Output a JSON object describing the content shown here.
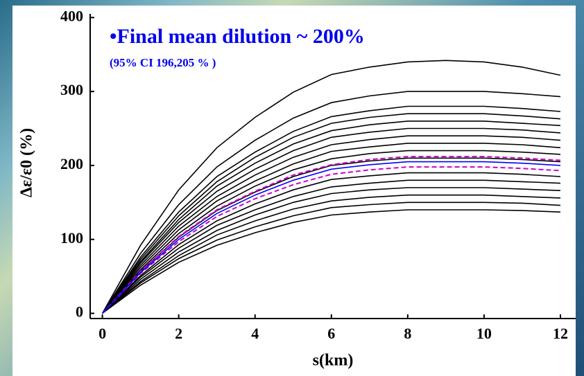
{
  "chart_data": {
    "type": "line",
    "title": "•Final mean dilution ~ 200%",
    "subtitle": "(95% CI 196,205 % )",
    "x_label": "s(km)",
    "y_label": "Δε/ε0 (%)",
    "x": [
      0,
      1,
      2,
      3,
      4,
      5,
      6,
      7,
      8,
      9,
      10,
      11,
      12
    ],
    "xlim": [
      -0.32,
      12.4
    ],
    "ylim": [
      -7,
      405
    ],
    "xticks": [
      0,
      2,
      4,
      6,
      8,
      10,
      12
    ],
    "yticks": [
      0,
      100,
      200,
      300,
      400
    ],
    "series": [
      {
        "color": "#000000",
        "values": [
          0,
          38,
          69,
          92,
          109,
          123,
          133,
          137,
          140,
          140,
          140,
          139,
          137
        ]
      },
      {
        "color": "#000000",
        "values": [
          0,
          41,
          74,
          99,
          117,
          132,
          143,
          147,
          150,
          150,
          150,
          149,
          146
        ]
      },
      {
        "color": "#000000",
        "values": [
          0,
          43,
          78,
          106,
          125,
          141,
          152,
          157,
          160,
          160,
          160,
          158,
          156
        ]
      },
      {
        "color": "#000000",
        "values": [
          0,
          46,
          83,
          112,
          133,
          150,
          162,
          167,
          170,
          170,
          170,
          168,
          166
        ]
      },
      {
        "color": "#000000",
        "values": [
          0,
          49,
          88,
          119,
          140,
          158,
          171,
          176,
          180,
          180,
          180,
          178,
          176
        ]
      },
      {
        "color": "#000000",
        "values": [
          0,
          51,
          93,
          125,
          148,
          167,
          181,
          186,
          190,
          190,
          190,
          188,
          185
        ]
      },
      {
        "color": "#000000",
        "values": [
          0,
          57,
          103,
          139,
          164,
          185,
          200,
          206,
          210,
          210,
          210,
          208,
          205
        ]
      },
      {
        "color": "#000000",
        "values": [
          0,
          59,
          108,
          145,
          172,
          194,
          209,
          216,
          220,
          220,
          220,
          218,
          215
        ]
      },
      {
        "color": "#000000",
        "values": [
          0,
          62,
          113,
          152,
          179,
          202,
          219,
          225,
          230,
          230,
          230,
          228,
          224
        ]
      },
      {
        "color": "#000000",
        "values": [
          0,
          65,
          118,
          158,
          187,
          211,
          228,
          235,
          240,
          240,
          240,
          238,
          234
        ]
      },
      {
        "color": "#000000",
        "values": [
          0,
          68,
          123,
          165,
          195,
          220,
          238,
          245,
          250,
          250,
          250,
          248,
          244
        ]
      },
      {
        "color": "#000000",
        "values": [
          0,
          70,
          127,
          172,
          203,
          229,
          247,
          255,
          260,
          260,
          260,
          257,
          254
        ]
      },
      {
        "color": "#000000",
        "values": [
          0,
          73,
          132,
          178,
          211,
          238,
          257,
          265,
          270,
          270,
          270,
          267,
          263
        ]
      },
      {
        "color": "#000000",
        "values": [
          0,
          76,
          137,
          185,
          218,
          246,
          266,
          274,
          280,
          280,
          280,
          277,
          273
        ]
      },
      {
        "color": "#000000",
        "values": [
          0,
          81,
          147,
          198,
          234,
          264,
          285,
          294,
          300,
          300,
          300,
          297,
          293
        ]
      },
      {
        "color": "#000000",
        "values": [
          0,
          92,
          167,
          224,
          265,
          299,
          323,
          333,
          340,
          342,
          340,
          333,
          322
        ]
      },
      {
        "color": "#cc00cc",
        "dashed": true,
        "values": [
          0,
          54,
          97,
          131,
          155,
          174,
          188,
          194,
          198,
          198,
          198,
          196,
          193
        ]
      },
      {
        "color": "#cc00cc",
        "dashed": true,
        "values": [
          0,
          57,
          104,
          140,
          165,
          187,
          201,
          208,
          212,
          212,
          212,
          210,
          207
        ]
      },
      {
        "color": "#0000ff",
        "values": [
          0,
          55,
          100,
          135,
          160,
          180,
          195,
          201,
          205,
          205,
          205,
          203,
          200
        ]
      }
    ]
  }
}
